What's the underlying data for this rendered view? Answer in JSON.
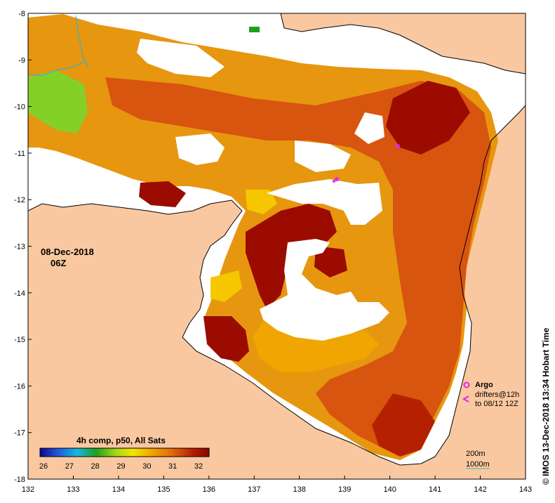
{
  "map": {
    "date": "08-Dec-2018",
    "time": "06Z",
    "x_ticks": [
      "132",
      "133",
      "134",
      "135",
      "136",
      "137",
      "138",
      "139",
      "140",
      "141",
      "142",
      "143"
    ],
    "y_ticks": [
      "-8",
      "-9",
      "-10",
      "-11",
      "-12",
      "-13",
      "-14",
      "-15",
      "-16",
      "-17",
      "-18"
    ],
    "colors": {
      "land": "#fac8a0",
      "sst_hot": "#9b0b00",
      "sst_warm": "#d7550f",
      "sst_mid": "#e7960f",
      "sst_cool": "#f6c700",
      "sst_green": "#7ad62b",
      "argo": "#e626e6",
      "isobath_200": "#6f6f6f",
      "isobath_1000": "#3fb6a3"
    }
  },
  "colorbar": {
    "title": "4h comp, p50, All Sats",
    "ticks": [
      "26",
      "27",
      "28",
      "29",
      "30",
      "31",
      "32"
    ],
    "colors": [
      "#0a0a8c",
      "#1f55d8",
      "#18b7e6",
      "#1ca11c",
      "#a8d615",
      "#f5e400",
      "#f0a600",
      "#e26a0c",
      "#b52100",
      "#8a0500"
    ]
  },
  "legend": {
    "argo": "Argo",
    "drifters_line1": "drifters@12h",
    "drifters_line2": "to 08/12 12Z",
    "isobath_200": "200m",
    "isobath_1000": "1000m"
  },
  "credit": "© IMOS 13-Dec-2018 13:34 Hobart Time"
}
